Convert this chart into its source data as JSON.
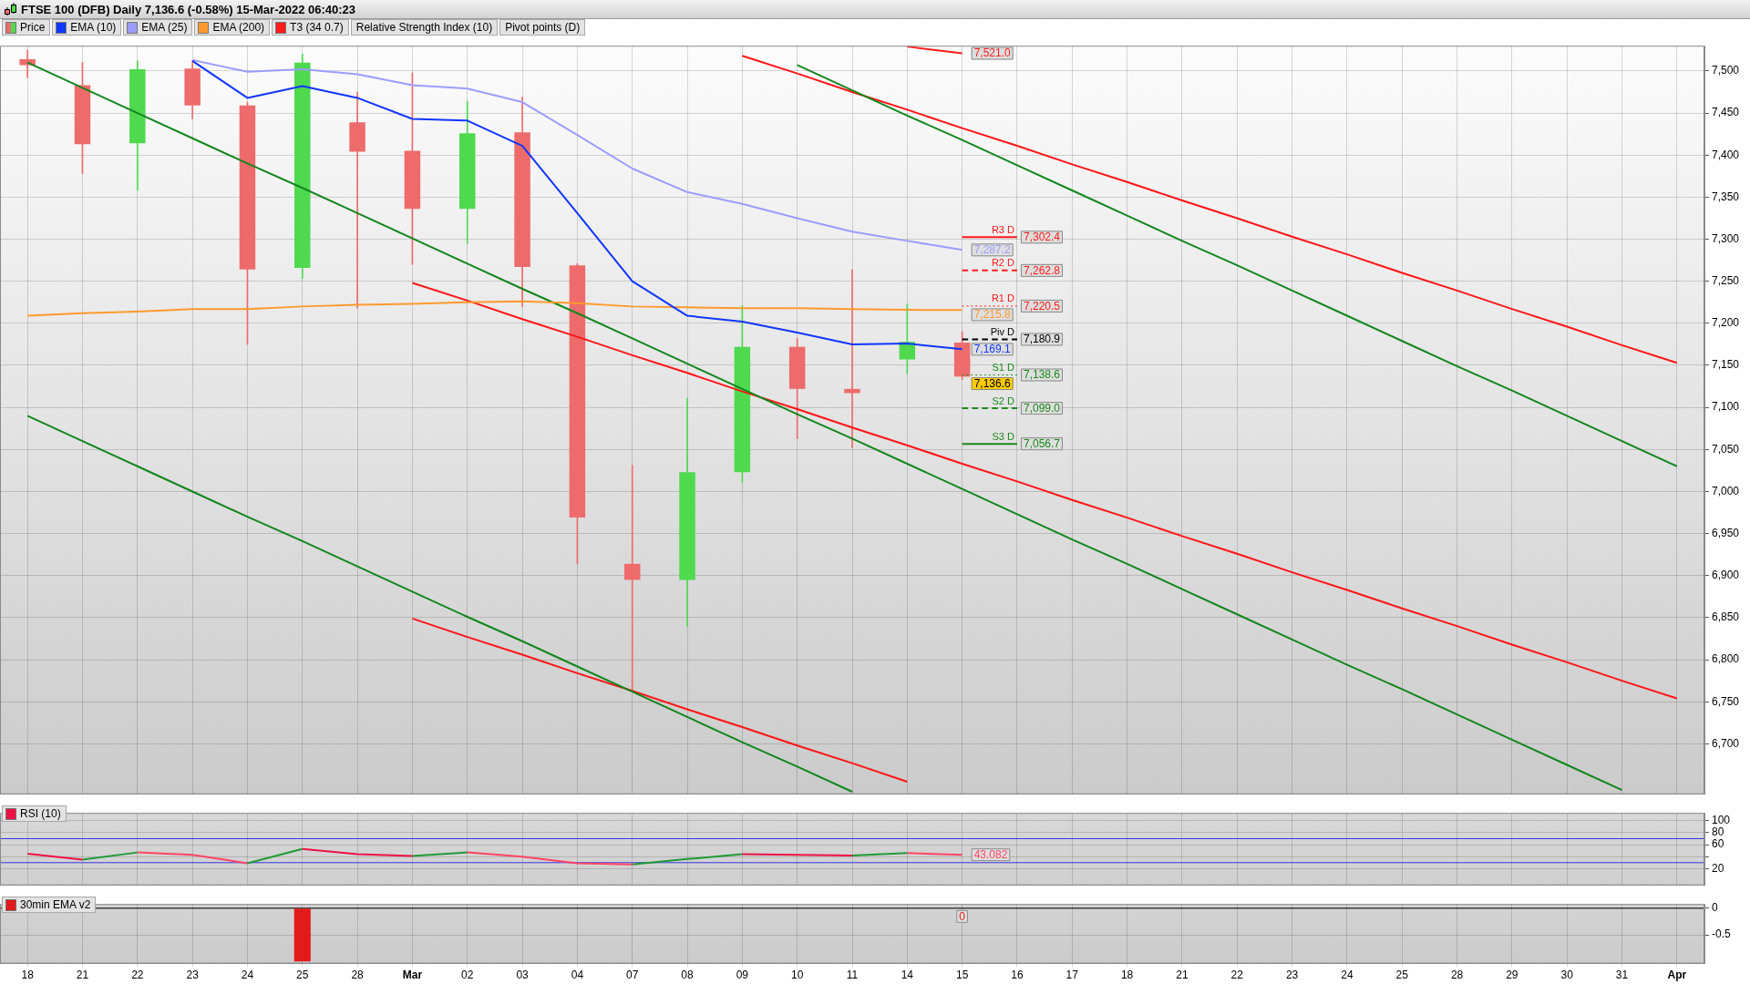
{
  "chart_data": [
    {
      "type": "candlestick",
      "title": "FTSE 100 (DFB) Daily 7,136.6 (-0.58%) 15-Mar-2022 06:40:23",
      "categories": [
        null,
        null,
        null,
        null,
        null,
        null,
        null,
        null,
        null,
        null,
        null,
        null,
        null,
        null,
        null,
        null,
        null,
        null,
        null,
        null,
        null,
        null,
        null,
        null,
        null,
        null,
        null,
        null,
        null,
        null,
        null
      ],
      "ylim": [
        6640,
        7530
      ],
      "yticks": [
        {
          "value": 6700,
          "label": "6,700"
        },
        {
          "value": 6750,
          "label": "6,750"
        },
        {
          "value": 6800,
          "label": "6,800"
        },
        {
          "value": 6850,
          "label": "6,850"
        },
        {
          "value": 6900,
          "label": "6,900"
        },
        {
          "value": 6950,
          "label": "6,950"
        },
        {
          "value": 7000,
          "label": "7,000"
        },
        {
          "value": 7050,
          "label": "7,050"
        },
        {
          "value": 7100,
          "label": "7,100"
        },
        {
          "value": 7150,
          "label": "7,150"
        },
        {
          "value": 7200,
          "label": "7,200"
        },
        {
          "value": 7250,
          "label": "7,250"
        },
        {
          "value": 7300,
          "label": "7,300"
        },
        {
          "value": 7350,
          "label": "7,350"
        },
        {
          "value": 7400,
          "label": "7,400"
        },
        {
          "value": 7450,
          "label": "7,450"
        },
        {
          "value": 7500,
          "label": "7,500"
        }
      ],
      "grid": true,
      "legend": "top left",
      "annotations": [
        "Relative Strength Index (10)",
        "Pivot points (D)"
      ],
      "series": [
        {
          "name": "Price",
          "ohlc": [
            [
              7514,
              7525,
              7492,
              7507
            ],
            [
              7483,
              7510,
              7378,
              7413
            ],
            [
              7414,
              7512,
              7358,
              7502
            ],
            [
              7503,
              7512,
              7443,
              7459
            ],
            [
              7459,
              7463,
              7175,
              7264
            ],
            [
              7266,
              7520,
              7253,
              7510
            ],
            [
              7439,
              7475,
              7218,
              7404
            ],
            [
              7405,
              7498,
              7270,
              7336
            ],
            [
              7336,
              7464,
              7295,
              7426
            ],
            [
              7427,
              7469,
              7220,
              7267
            ],
            [
              7269,
              7271,
              6914,
              6969
            ],
            [
              6914,
              7031,
              6763,
              6895
            ],
            [
              6895,
              7111,
              6840,
              7023
            ],
            [
              7023,
              7221,
              7011,
              7172
            ],
            [
              7172,
              7182,
              7063,
              7122
            ],
            [
              7122,
              7264,
              7052,
              7117
            ],
            [
              7157,
              7223,
              7140,
              7178
            ],
            [
              7177,
              7190,
              7133,
              7136.6
            ],
            null,
            null,
            null,
            null,
            null,
            null,
            null,
            null,
            null,
            null,
            null,
            null,
            null
          ],
          "colors": [
            "#ee6b6b",
            "#ee6b6b",
            "#4fd94f",
            "#ee6b6b",
            "#ee6b6b",
            "#4fd94f",
            "#ee6b6b",
            "#ee6b6b",
            "#4fd94f",
            "#ee6b6b",
            "#ee6b6b",
            "#ee6b6b",
            "#4fd94f",
            "#4fd94f",
            "#ee6b6b",
            "#ee6b6b",
            "#4fd94f",
            "#ee6b6b",
            null,
            null,
            null,
            null,
            null,
            null,
            null,
            null,
            null,
            null,
            null,
            null,
            null
          ],
          "value_labels": [
            null,
            null,
            null,
            null,
            null,
            null,
            null,
            null,
            null,
            null,
            null,
            null,
            null,
            null,
            null,
            null,
            null,
            "7,136.6",
            null,
            null,
            null,
            null,
            null,
            null,
            null,
            null,
            null,
            null,
            null,
            null,
            null
          ]
        },
        {
          "name": "EMA (10)",
          "type": "line",
          "color": "#1036ff",
          "values": [
            null,
            null,
            null,
            7512,
            7468,
            7482,
            7468,
            7443,
            7441,
            7411,
            7331,
            7250,
            7209,
            7202,
            7189,
            7175,
            7176,
            7169.1,
            null,
            null,
            null,
            null,
            null,
            null,
            null,
            null,
            null,
            null,
            null,
            null,
            null
          ],
          "value_labels": [
            null,
            null,
            null,
            null,
            null,
            null,
            null,
            null,
            null,
            null,
            null,
            null,
            null,
            null,
            null,
            null,
            null,
            "7,169.1",
            null,
            null,
            null,
            null,
            null,
            null,
            null,
            null,
            null,
            null,
            null,
            null,
            null
          ]
        },
        {
          "name": "EMA (25)",
          "type": "line",
          "color": "#9c9cff",
          "values": [
            null,
            null,
            null,
            7513,
            7499,
            7502,
            7496,
            7483,
            7479,
            7463,
            7424,
            7384,
            7356,
            7342,
            7325,
            7309,
            7298,
            7287.2,
            null,
            null,
            null,
            null,
            null,
            null,
            null,
            null,
            null,
            null,
            null,
            null,
            null
          ],
          "value_labels": [
            null,
            null,
            null,
            null,
            null,
            null,
            null,
            null,
            null,
            null,
            null,
            null,
            null,
            null,
            null,
            null,
            null,
            "7,287.2",
            null,
            null,
            null,
            null,
            null,
            null,
            null,
            null,
            null,
            null,
            null,
            null,
            null
          ]
        },
        {
          "name": "EMA (200)",
          "type": "line",
          "color": "#ff9a2e",
          "values": [
            7209,
            7212,
            7214,
            7217,
            7217,
            7220,
            7222,
            7223,
            7225,
            7226,
            7224,
            7220,
            7219,
            7218,
            7218,
            7217,
            7216,
            7215.8,
            null,
            null,
            null,
            null,
            null,
            null,
            null,
            null,
            null,
            null,
            null,
            null,
            null
          ],
          "value_labels": [
            null,
            null,
            null,
            null,
            null,
            null,
            null,
            null,
            null,
            null,
            null,
            null,
            null,
            null,
            null,
            null,
            null,
            "7,215.8",
            null,
            null,
            null,
            null,
            null,
            null,
            null,
            null,
            null,
            null,
            null,
            null,
            null
          ]
        },
        {
          "name": "T3 (34 0.7)",
          "type": "line",
          "color": "#ff1a1a",
          "values": [
            null,
            null,
            null,
            null,
            null,
            null,
            null,
            null,
            null,
            null,
            null,
            null,
            null,
            null,
            null,
            null,
            7529,
            7521.0,
            null,
            null,
            null,
            null,
            null,
            null,
            null,
            null,
            null,
            null,
            null,
            null,
            null
          ],
          "value_labels": [
            null,
            null,
            null,
            null,
            null,
            null,
            null,
            null,
            null,
            null,
            null,
            null,
            null,
            null,
            null,
            null,
            null,
            "7,521.0",
            null,
            null,
            null,
            null,
            null,
            null,
            null,
            null,
            null,
            null,
            null,
            null,
            null
          ]
        },
        {
          "name": "R3 D",
          "type": "step",
          "color": "#ff1a1a",
          "line_style": "solid",
          "values": [
            null,
            null,
            null,
            null,
            null,
            null,
            null,
            null,
            null,
            null,
            null,
            null,
            null,
            null,
            null,
            null,
            null,
            7302.4,
            7302.4,
            null,
            null,
            null,
            null,
            null,
            null,
            null,
            null,
            null,
            null,
            null,
            null
          ],
          "value_labels": [
            null,
            null,
            null,
            null,
            null,
            null,
            null,
            null,
            null,
            null,
            null,
            null,
            null,
            null,
            null,
            null,
            null,
            null,
            "7,302.4",
            null,
            null,
            null,
            null,
            null,
            null,
            null,
            null,
            null,
            null,
            null,
            null
          ]
        },
        {
          "name": "R2 D",
          "type": "step",
          "color": "#ff1a1a",
          "line_style": "dashed",
          "values": [
            null,
            null,
            null,
            null,
            null,
            null,
            null,
            null,
            null,
            null,
            null,
            null,
            null,
            null,
            null,
            null,
            null,
            7262.8,
            7262.8,
            null,
            null,
            null,
            null,
            null,
            null,
            null,
            null,
            null,
            null,
            null,
            null
          ],
          "value_labels": [
            null,
            null,
            null,
            null,
            null,
            null,
            null,
            null,
            null,
            null,
            null,
            null,
            null,
            null,
            null,
            null,
            null,
            null,
            "7,262.8",
            null,
            null,
            null,
            null,
            null,
            null,
            null,
            null,
            null,
            null,
            null,
            null
          ]
        },
        {
          "name": "R1 D",
          "type": "step",
          "color": "#ff1a1a",
          "line_style": "dotted",
          "values": [
            null,
            null,
            null,
            null,
            null,
            null,
            null,
            null,
            null,
            null,
            null,
            null,
            null,
            null,
            null,
            null,
            null,
            7220.5,
            7220.5,
            null,
            null,
            null,
            null,
            null,
            null,
            null,
            null,
            null,
            null,
            null,
            null
          ],
          "value_labels": [
            null,
            null,
            null,
            null,
            null,
            null,
            null,
            null,
            null,
            null,
            null,
            null,
            null,
            null,
            null,
            null,
            null,
            null,
            "7,220.5",
            null,
            null,
            null,
            null,
            null,
            null,
            null,
            null,
            null,
            null,
            null,
            null
          ]
        },
        {
          "name": "Piv D",
          "type": "step",
          "color": "#000000",
          "line_style": "dashed",
          "values": [
            null,
            null,
            null,
            null,
            null,
            null,
            null,
            null,
            null,
            null,
            null,
            null,
            null,
            null,
            null,
            null,
            null,
            7180.9,
            7180.9,
            null,
            null,
            null,
            null,
            null,
            null,
            null,
            null,
            null,
            null,
            null,
            null
          ],
          "value_labels": [
            null,
            null,
            null,
            null,
            null,
            null,
            null,
            null,
            null,
            null,
            null,
            null,
            null,
            null,
            null,
            null,
            null,
            null,
            "7,180.9",
            null,
            null,
            null,
            null,
            null,
            null,
            null,
            null,
            null,
            null,
            null,
            null
          ]
        },
        {
          "name": "S1 D",
          "type": "step",
          "color": "#1a8a1a",
          "line_style": "dotted",
          "values": [
            null,
            null,
            null,
            null,
            null,
            null,
            null,
            null,
            null,
            null,
            null,
            null,
            null,
            null,
            null,
            null,
            null,
            7138.6,
            7138.6,
            null,
            null,
            null,
            null,
            null,
            null,
            null,
            null,
            null,
            null,
            null,
            null
          ],
          "value_labels": [
            null,
            null,
            null,
            null,
            null,
            null,
            null,
            null,
            null,
            null,
            null,
            null,
            null,
            null,
            null,
            null,
            null,
            null,
            "7,138.6",
            null,
            null,
            null,
            null,
            null,
            null,
            null,
            null,
            null,
            null,
            null,
            null
          ]
        },
        {
          "name": "S2 D",
          "type": "step",
          "color": "#1a8a1a",
          "line_style": "dashed",
          "values": [
            null,
            null,
            null,
            null,
            null,
            null,
            null,
            null,
            null,
            null,
            null,
            null,
            null,
            null,
            null,
            null,
            null,
            7099.0,
            7099.0,
            null,
            null,
            null,
            null,
            null,
            null,
            null,
            null,
            null,
            null,
            null,
            null
          ],
          "value_labels": [
            null,
            null,
            null,
            null,
            null,
            null,
            null,
            null,
            null,
            null,
            null,
            null,
            null,
            null,
            null,
            null,
            null,
            null,
            "7,099.0",
            null,
            null,
            null,
            null,
            null,
            null,
            null,
            null,
            null,
            null,
            null,
            null
          ]
        },
        {
          "name": "S3 D",
          "type": "step",
          "color": "#1a8a1a",
          "line_style": "solid",
          "values": [
            null,
            null,
            null,
            null,
            null,
            null,
            null,
            null,
            null,
            null,
            null,
            null,
            null,
            null,
            null,
            null,
            null,
            7056.7,
            7056.7,
            null,
            null,
            null,
            null,
            null,
            null,
            null,
            null,
            null,
            null,
            null,
            null
          ],
          "value_labels": [
            null,
            null,
            null,
            null,
            null,
            null,
            null,
            null,
            null,
            null,
            null,
            null,
            null,
            null,
            null,
            null,
            null,
            null,
            "7,056.7",
            null,
            null,
            null,
            null,
            null,
            null,
            null,
            null,
            null,
            null,
            null,
            null
          ]
        },
        {
          "type": "line",
          "color": "#13861d",
          "values": [
            7510,
            7480,
            7450,
            7420,
            7390,
            7361,
            7331,
            7301,
            7271,
            7241,
            7212,
            7182,
            7152,
            7122,
            7092,
            7063,
            7033,
            7003,
            6973,
            6943,
            6914,
            6884,
            6854,
            6824,
            6794,
            6765,
            6735,
            6705,
            6675,
            6645,
            null
          ]
        },
        {
          "type": "line",
          "color": "#13861d",
          "values": [
            7090,
            7060,
            7030,
            7000,
            6970,
            6941,
            6911,
            6881,
            6851,
            6822,
            6792,
            6762,
            6732,
            6702,
            6673,
            6643,
            null,
            null,
            null,
            null,
            null,
            null,
            null,
            null,
            null,
            null,
            null,
            null,
            null,
            null,
            null
          ]
        },
        {
          "type": "line",
          "color": "#13861d",
          "values": [
            null,
            null,
            null,
            null,
            null,
            null,
            null,
            null,
            null,
            null,
            null,
            null,
            null,
            null,
            7507,
            7477,
            7447,
            7418,
            7388,
            7358,
            7328,
            7298,
            7269,
            7239,
            7209,
            7179,
            7149,
            7120,
            7090,
            7060,
            7030
          ]
        },
        {
          "type": "line",
          "color": "#ff1515",
          "values": [
            null,
            null,
            null,
            null,
            null,
            null,
            null,
            7248,
            7227,
            7205,
            7184,
            7162,
            7141,
            7119,
            7098,
            7076,
            7055,
            7033,
            7012,
            6990,
            6969,
            6947,
            6926,
            6904,
            6883,
            6861,
            6840,
            6818,
            6797,
            6775,
            6754
          ]
        },
        {
          "type": "line",
          "color": "#ff1515",
          "values": [
            null,
            null,
            null,
            null,
            null,
            null,
            null,
            null,
            null,
            null,
            null,
            null,
            null,
            7518,
            7497,
            7475,
            7454,
            7432,
            7411,
            7389,
            7368,
            7346,
            7325,
            7303,
            7282,
            7260,
            7239,
            7217,
            7196,
            7174,
            7153
          ]
        },
        {
          "type": "line",
          "color": "#ff1515",
          "values": [
            null,
            null,
            null,
            null,
            null,
            null,
            null,
            6849,
            6827,
            6806,
            6784,
            6763,
            6741,
            6720,
            6698,
            6677,
            6655,
            null,
            null,
            null,
            null,
            null,
            null,
            null,
            null,
            null,
            null,
            null,
            null,
            null,
            null
          ]
        }
      ]
    },
    {
      "type": "line",
      "categories": [
        null,
        null,
        null,
        null,
        null,
        null,
        null,
        null,
        null,
        null,
        null,
        null,
        null,
        null,
        null,
        null,
        null,
        null,
        null,
        null,
        null,
        null,
        null,
        null,
        null,
        null,
        null,
        null,
        null,
        null,
        null
      ],
      "ylim": [
        -8,
        113
      ],
      "yticks": [
        20,
        {
          "value": 40,
          "label": null
        },
        60,
        80,
        100
      ],
      "grid": true,
      "legend": "top left",
      "ref_lines": [
        {
          "axis": "y",
          "value": 70,
          "color": "#3535e0"
        },
        {
          "axis": "y",
          "value": 30,
          "color": "#3535e0"
        }
      ],
      "series": [
        {
          "name": "RSI (10)",
          "color": "#ee1144",
          "values": [
            45,
            35,
            null,
            null,
            null,
            53,
            44,
            41,
            null,
            null,
            null,
            null,
            null,
            44,
            43,
            42,
            null,
            null,
            null,
            null,
            null,
            null,
            null,
            null,
            null,
            null,
            null,
            null,
            null,
            null,
            null
          ]
        },
        {
          "color": "#ff4466",
          "values": [
            null,
            null,
            47,
            43,
            29,
            null,
            null,
            null,
            47,
            40,
            29,
            27,
            null,
            null,
            null,
            null,
            46,
            43.082,
            null,
            null,
            null,
            null,
            null,
            null,
            null,
            null,
            null,
            null,
            null,
            null,
            null
          ],
          "value_labels": [
            null,
            null,
            null,
            null,
            null,
            null,
            null,
            null,
            null,
            null,
            null,
            null,
            null,
            null,
            null,
            null,
            null,
            "43.082",
            null,
            null,
            null,
            null,
            null,
            null,
            null,
            null,
            null,
            null,
            null,
            null,
            null
          ]
        },
        {
          "color": "#1f9a35",
          "values": [
            null,
            35,
            47,
            null,
            29,
            53,
            null,
            41,
            47,
            null,
            null,
            27,
            36,
            44,
            null,
            42,
            46,
            null,
            null,
            null,
            null,
            null,
            null,
            null,
            null,
            null,
            null,
            null,
            null,
            null,
            null
          ]
        }
      ]
    },
    {
      "type": "bar",
      "categories": [
        "18",
        "21",
        "22",
        "23",
        "24",
        "25",
        "28",
        "Mar",
        "02",
        "03",
        "04",
        "07",
        "08",
        "09",
        "10",
        "11",
        "14",
        "15",
        "16",
        "17",
        "18",
        "21",
        "22",
        "23",
        "24",
        "25",
        "28",
        "29",
        "30",
        "31",
        "Apr"
      ],
      "ylim": [
        -1.04,
        0.08
      ],
      "yticks": [
        -0.5,
        0
      ],
      "grid": true,
      "legend": "top left",
      "ref_lines": [
        {
          "axis": "y",
          "value": 0,
          "color": "#000000"
        }
      ],
      "series": [
        {
          "name": "30min EMA v2",
          "color": "#e31a1a",
          "values": [
            0,
            0,
            0,
            0,
            0,
            -1,
            0,
            0,
            0,
            0,
            0,
            0,
            0,
            0,
            0,
            0,
            0,
            0,
            null,
            null,
            null,
            null,
            null,
            null,
            null,
            null,
            null,
            null,
            null,
            null,
            null
          ],
          "value_labels": [
            null,
            null,
            null,
            null,
            null,
            null,
            null,
            null,
            null,
            null,
            null,
            null,
            null,
            null,
            null,
            null,
            null,
            "0",
            null,
            null,
            null,
            null,
            null,
            null,
            null,
            null,
            null,
            null,
            null,
            null,
            null
          ]
        }
      ]
    }
  ]
}
